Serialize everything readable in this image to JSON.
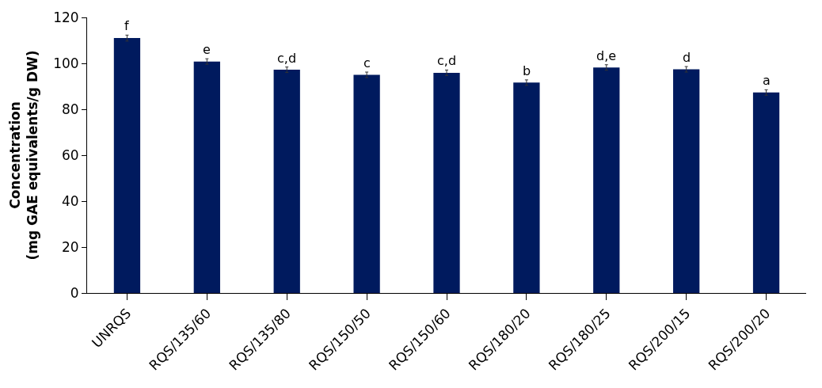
{
  "chart_data": {
    "type": "bar",
    "ylabel": "Concentration\n(mg GAE equivalents/g DW)",
    "categories": [
      "UNRQS",
      "RQS/135/60",
      "RQS/135/80",
      "RQS/150/50",
      "RQS/150/60",
      "RQS/180/20",
      "RQS/180/25",
      "RQS/200/15",
      "RQS/200/20"
    ],
    "values": [
      111,
      100.8,
      97.2,
      95,
      95.9,
      91.6,
      98.2,
      97.4,
      87.3
    ],
    "errors": [
      1.3,
      1.2,
      1.2,
      1.2,
      1.2,
      1.2,
      1.2,
      1.2,
      1.2
    ],
    "color": "#001a5e",
    "ylim": [
      0,
      120
    ],
    "yticks": [
      0,
      20,
      40,
      60,
      80,
      100,
      120
    ],
    "annotations": [
      {
        "text": "f",
        "x": "UNRQS",
        "y": 112.3
      },
      {
        "text": "e",
        "x": "RQS/135/60",
        "y": 102
      },
      {
        "text": "c,d",
        "x": "RQS/135/80",
        "y": 98.4
      },
      {
        "text": "c",
        "x": "RQS/150/50",
        "y": 96.2
      },
      {
        "text": "c,d",
        "x": "RQS/150/60",
        "y": 97.1
      },
      {
        "text": "b",
        "x": "RQS/180/20",
        "y": 92.8
      },
      {
        "text": "d,e",
        "x": "RQS/180/25",
        "y": 99.4
      },
      {
        "text": "d",
        "x": "RQS/200/15",
        "y": 98.6
      },
      {
        "text": "a",
        "x": "RQS/200/20",
        "y": 88.5
      }
    ]
  }
}
